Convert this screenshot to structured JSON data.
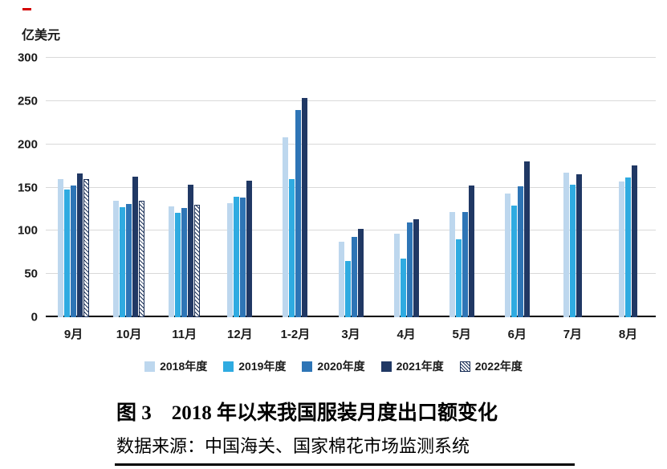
{
  "chart_data": {
    "type": "bar",
    "y_axis_title": "亿美元",
    "categories": [
      "9月",
      "10月",
      "11月",
      "12月",
      "1-2月",
      "3月",
      "4月",
      "5月",
      "6月",
      "7月",
      "8月"
    ],
    "y_ticks": [
      0,
      50,
      100,
      150,
      200,
      250,
      300
    ],
    "ylim": [
      0,
      300
    ],
    "grid": true,
    "legend_position": "bottom",
    "series": [
      {
        "name": "2018年度",
        "color": "#bdd7ee",
        "pattern": "solid",
        "values": [
          160,
          135,
          128,
          132,
          208,
          87,
          97,
          122,
          143,
          167,
          157
        ]
      },
      {
        "name": "2019年度",
        "color": "#2fabe1",
        "pattern": "solid",
        "values": [
          148,
          127,
          121,
          139,
          160,
          65,
          68,
          90,
          129,
          153,
          162
        ]
      },
      {
        "name": "2020年度",
        "color": "#2e75b6",
        "pattern": "solid",
        "values": [
          152,
          131,
          126,
          138,
          240,
          93,
          110,
          122,
          151,
          null,
          null
        ]
      },
      {
        "name": "2021年度",
        "color": "#203864",
        "pattern": "solid",
        "values": [
          166,
          163,
          153,
          158,
          254,
          102,
          113,
          152,
          180,
          165,
          176
        ]
      },
      {
        "name": "2022年度",
        "color": "#1a2f57",
        "pattern": "hatch",
        "values": [
          160,
          135,
          130,
          null,
          null,
          null,
          null,
          null,
          null,
          null,
          null
        ]
      }
    ]
  },
  "caption": {
    "title": "图 3　2018 年以来我国服装月度出口额变化",
    "source": "数据来源：中国海关、国家棉花市场监测系统"
  }
}
